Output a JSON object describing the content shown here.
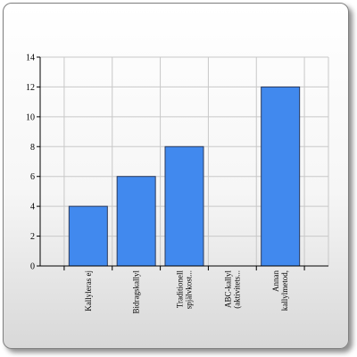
{
  "chart_data": {
    "type": "bar",
    "categories": [
      [
        "Kallyleras ej"
      ],
      [
        "Bidragskallyl"
      ],
      [
        "Traditionell",
        "spjälvkost..."
      ],
      [
        "ABC-kallyl",
        "(aktivitets..."
      ],
      [
        "Annan",
        "kallylmetod,"
      ]
    ],
    "values": [
      4,
      6,
      8,
      0,
      12
    ],
    "ylim": [
      0,
      14
    ],
    "yticks": [
      0,
      2,
      4,
      6,
      8,
      10,
      12,
      14
    ],
    "grid": true,
    "legend": "none",
    "title": "",
    "xlabel": "",
    "ylabel": "",
    "colors": {
      "bar": "#4189ee",
      "bar_edge": "#2b3a5c",
      "grid": "#c8c8c8",
      "axis": "#000000"
    }
  }
}
